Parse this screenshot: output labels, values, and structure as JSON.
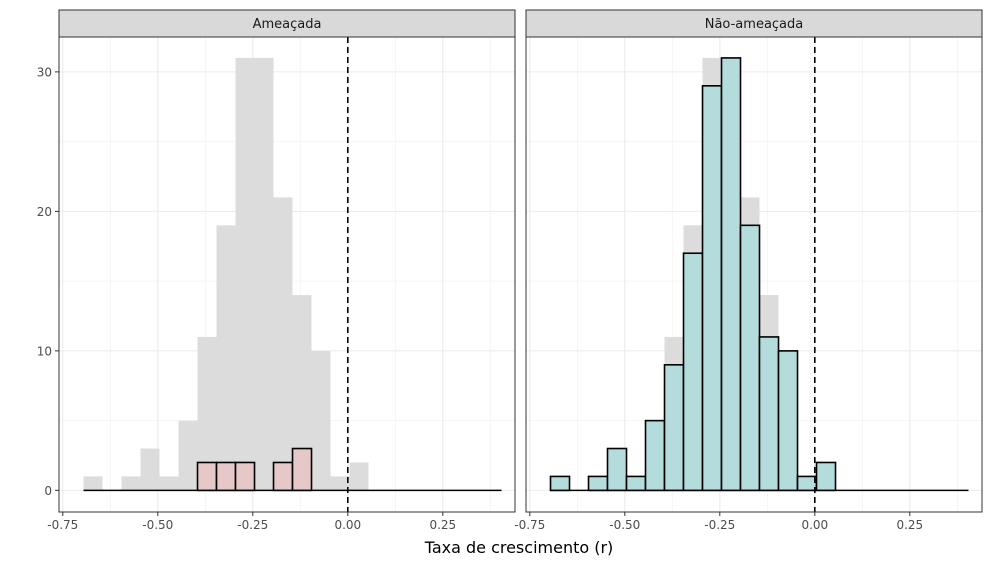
{
  "chart_data": {
    "type": "bar",
    "xlabel": "Taxa de crescimento (r)",
    "ylabel": "",
    "xlim": [
      -0.76,
      0.44
    ],
    "ylim": [
      -1.55,
      32.5
    ],
    "bins": [
      -0.6705,
      -0.6205,
      -0.5705,
      -0.5205,
      -0.4705,
      -0.4205,
      -0.3705,
      -0.3205,
      -0.2705,
      -0.2205,
      -0.1705,
      -0.1205,
      -0.0705,
      -0.0205,
      0.0295,
      0.0795,
      0.1295,
      0.1795,
      0.2295,
      0.2795,
      0.3295,
      0.3795
    ],
    "x_ticks": [
      -0.75,
      -0.5,
      -0.25,
      0.0,
      0.25
    ],
    "x_tick_labels": [
      "-0.75",
      "-0.50",
      "-0.25",
      "0.00",
      "0.25"
    ],
    "y_ticks": [
      0,
      10,
      20,
      30
    ],
    "y_tick_labels": [
      "0",
      "10",
      "20",
      "30"
    ],
    "reference_line_x": 0,
    "background_series": {
      "values": [
        1,
        0,
        1,
        3,
        1,
        5,
        11,
        19,
        31,
        31,
        21,
        14,
        10,
        1,
        2,
        0,
        0,
        0,
        0,
        0,
        0,
        0
      ],
      "color": "#dcdcdc"
    },
    "panels": [
      {
        "title": "Ameaçada",
        "fill": "#e6c8c8",
        "values": [
          0,
          0,
          0,
          0,
          0,
          0,
          2,
          2,
          2,
          0,
          2,
          3,
          0,
          0,
          0,
          0,
          0,
          0,
          0,
          0,
          0,
          0
        ]
      },
      {
        "title": "Não-ameaçada",
        "fill": "#b4dcdc",
        "values": [
          1,
          0,
          1,
          3,
          1,
          5,
          9,
          17,
          29,
          31,
          19,
          11,
          10,
          1,
          2,
          0,
          0,
          0,
          0,
          0,
          0,
          0
        ]
      }
    ]
  },
  "colors": {
    "strip_bg": "#d9d9d9",
    "grid": "#ebebeb",
    "border": "#333333"
  }
}
